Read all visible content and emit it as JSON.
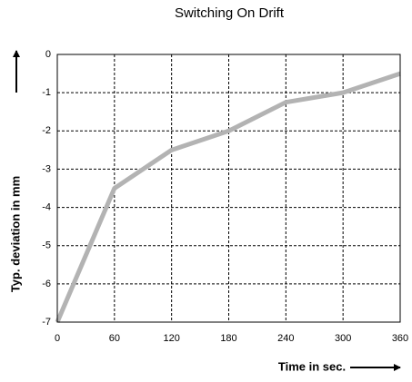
{
  "chart_data": {
    "type": "line",
    "title": "Switching On Drift",
    "x_label": "Time in sec.",
    "y_label": "Typ. deviation in mm",
    "x": [
      0,
      60,
      120,
      180,
      240,
      300,
      360
    ],
    "values": [
      -7,
      -3.5,
      -2.5,
      -2,
      -1.25,
      -1,
      -0.5
    ],
    "color": "#b3b3b3",
    "xlim": [
      0,
      360
    ],
    "xticks": [
      0,
      60,
      120,
      180,
      240,
      300,
      360
    ],
    "ylim": [
      -7,
      0
    ],
    "yticks": [
      0,
      -1,
      -2,
      -3,
      -4,
      -5,
      -6,
      -7
    ],
    "grid": true
  }
}
